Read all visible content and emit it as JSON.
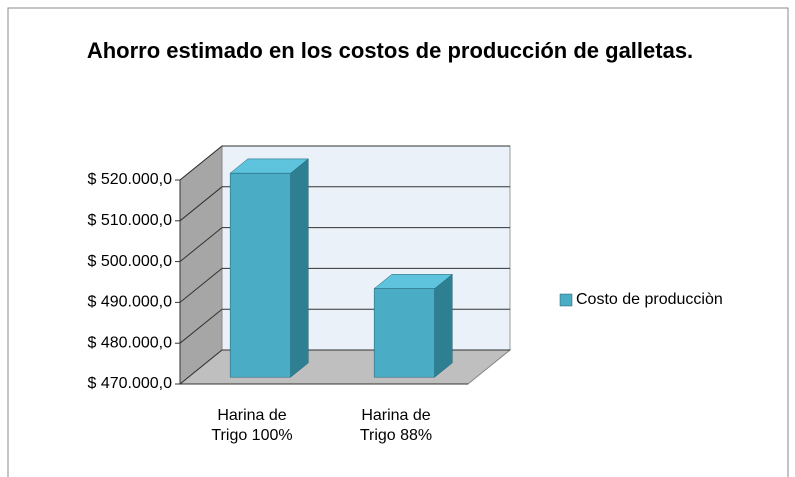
{
  "chart_data": {
    "type": "bar3d",
    "title": "Ahorro estimado en los costos de producción de galletas.",
    "categories": [
      "Harina de Trigo 100%",
      "Harina de Trigo 88%"
    ],
    "series": [
      {
        "name": "Costo de producciòn",
        "color": "#4bacc6",
        "values": [
          520000,
          491700
        ]
      }
    ],
    "ylim": [
      470000,
      520000
    ],
    "yticks": [
      {
        "value": 470000,
        "label": "$ 470.000,0"
      },
      {
        "value": 480000,
        "label": "$ 480.000,0"
      },
      {
        "value": 490000,
        "label": "$ 490.000,0"
      },
      {
        "value": 500000,
        "label": "$ 500.000,0"
      },
      {
        "value": 510000,
        "label": "$ 510.000,0"
      },
      {
        "value": 520000,
        "label": "$ 520.000,0"
      }
    ],
    "grid": true,
    "legend": "right"
  }
}
